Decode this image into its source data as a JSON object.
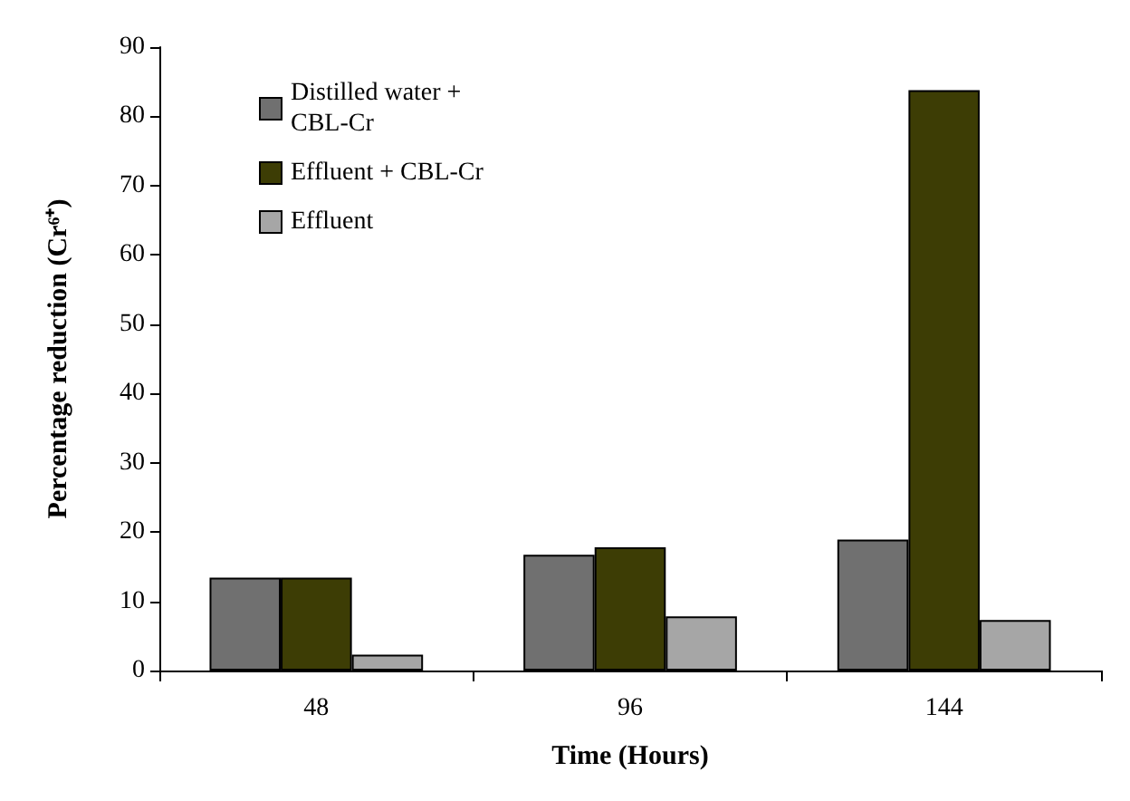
{
  "chart_data": {
    "type": "bar",
    "xlabel": "Time (Hours)",
    "ylabel": "Percentage reduction (Cr⁶⁺)",
    "categories": [
      "48",
      "96",
      "144"
    ],
    "series": [
      {
        "name": "Distilled water + CBL-Cr",
        "color": "#707070",
        "values": [
          13.4,
          16.7,
          18.9
        ]
      },
      {
        "name": "Effluent + CBL-Cr",
        "color": "#3d3d05",
        "values": [
          13.4,
          17.8,
          83.8
        ]
      },
      {
        "name": "Effluent",
        "color": "#a6a6a6",
        "values": [
          2.3,
          7.8,
          7.3
        ]
      }
    ],
    "ylim": [
      0,
      90
    ],
    "yticks": [
      0,
      10,
      20,
      30,
      40,
      50,
      60,
      70,
      80,
      90
    ],
    "grid": false,
    "legend": "top left"
  }
}
